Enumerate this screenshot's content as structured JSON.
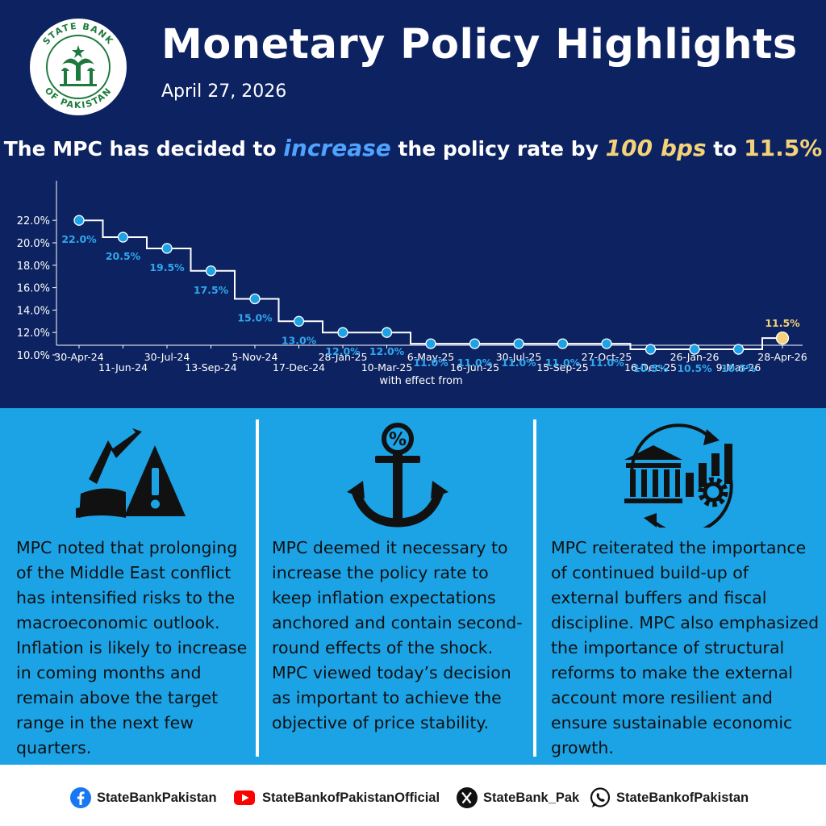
{
  "header": {
    "logo": {
      "top_text": "STATE BANK",
      "bottom_text": "OF PAKISTAN",
      "icon": "state-bank-of-pakistan-emblem"
    },
    "title": "Monetary Policy Highlights",
    "date": "April 27, 2026"
  },
  "headline": {
    "part1": "The MPC has decided to ",
    "emphasis": "increase",
    "part2": " the policy rate by ",
    "bps": "100 bps",
    "part3": " to ",
    "rate": "11.5%"
  },
  "colors": {
    "navy": "#0d2260",
    "panel_blue": "#1ba3e6",
    "point_blue": "#1ba3e6",
    "label_blue": "#2fa8ee",
    "highlight_gold": "#f3d27a",
    "emphasis_blue": "#4fa3ff"
  },
  "chart_data": {
    "type": "line",
    "step": true,
    "xlabel": "with effect from",
    "ylabel": "",
    "ylim": [
      9.0,
      22.5
    ],
    "yticks": [
      "22.0%",
      "20.0%",
      "18.0%",
      "16.0%",
      "14.0%",
      "12.0%",
      "10.0%"
    ],
    "ytick_values": [
      22,
      20,
      18,
      16,
      14,
      12,
      10
    ],
    "x": [
      "30-Apr-24",
      "11-Jun-24",
      "30-Jul-24",
      "13-Sep-24",
      "5-Nov-24",
      "17-Dec-24",
      "28-Jan-25",
      "10-Mar-25",
      "6-May-25",
      "16-Jun-25",
      "30-Jul-25",
      "15-Sep-25",
      "27-Oct-25",
      "16-Dec-25",
      "26-Jan-26",
      "9-Mar-26",
      "28-Apr-26"
    ],
    "values": [
      22.0,
      20.5,
      19.5,
      17.5,
      15.0,
      13.0,
      12.0,
      12.0,
      11.0,
      11.0,
      11.0,
      11.0,
      11.0,
      10.5,
      10.5,
      10.5,
      11.5
    ],
    "data_labels": [
      "22.0%",
      "20.5%",
      "19.5%",
      "17.5%",
      "15.0%",
      "13.0%",
      "12.0%",
      "12.0%",
      "11.0%",
      "11.0%",
      "11.0%",
      "11.0%",
      "11.0%",
      "10.5%",
      "10.5%",
      "10.5%",
      "11.5%"
    ],
    "grid": false,
    "legend": "none",
    "highlight_last": true
  },
  "points": [
    {
      "icon": "market-crash-warning-icon",
      "text": "MPC noted that prolonging of the Middle East conflict has intensified risks to the macroeconomic outlook. Inflation is likely to increase in coming months and remain above the target range in the next few quarters."
    },
    {
      "icon": "percent-anchor-icon",
      "text": "MPC deemed it necessary to increase the policy rate to keep inflation expectations anchored and contain second-round effects of the shock. MPC viewed today’s decision as important to achieve the objective of price stability."
    },
    {
      "icon": "bank-growth-gear-icon",
      "text": "MPC reiterated the importance of continued build-up of external buffers and fiscal discipline. MPC also emphasized the importance of structural reforms to make the external account more resilient and ensure sustainable economic growth."
    }
  ],
  "footer": {
    "facebook": {
      "icon": "facebook-icon",
      "handle": "StateBankPakistan",
      "color": "#1877f2"
    },
    "youtube": {
      "icon": "youtube-icon",
      "handle": "StateBankofPakistanOfficial",
      "color": "#ff0000"
    },
    "x": {
      "icon": "x-icon",
      "handle": "StateBank_Pak",
      "color": "#111111"
    },
    "whatsapp": {
      "icon": "whatsapp-icon",
      "handle": "StateBankofPakistan",
      "color": "#111111"
    }
  }
}
